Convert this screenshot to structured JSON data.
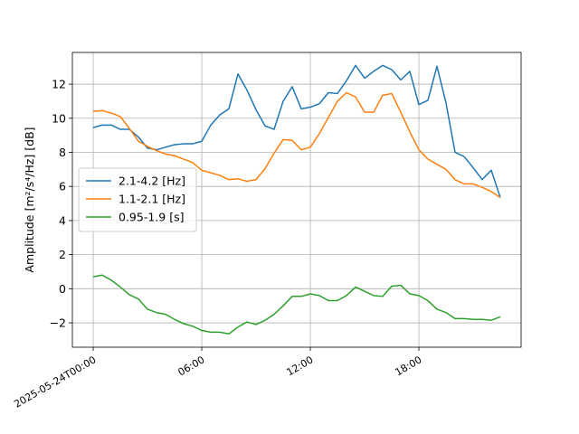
{
  "chart_data": {
    "type": "line",
    "ylabel": "Amplitude [m²/s⁴/Hz] [dB]",
    "x": [
      0,
      0.5,
      1,
      1.5,
      2,
      2.5,
      3,
      3.5,
      4,
      4.5,
      5,
      5.5,
      6,
      6.5,
      7,
      7.5,
      8,
      8.5,
      9,
      9.5,
      10,
      10.5,
      11,
      11.5,
      12,
      12.5,
      13,
      13.5,
      14,
      14.5,
      15,
      15.5,
      16,
      16.5,
      17,
      17.5,
      18,
      18.5,
      19,
      19.5,
      20,
      20.5,
      21,
      21.5,
      22,
      22.5
    ],
    "series": [
      {
        "name": "2.1-4.2 [Hz]",
        "color": "#1f77b4",
        "values": [
          9.45,
          9.6,
          9.6,
          9.35,
          9.35,
          8.9,
          8.25,
          8.15,
          8.3,
          8.45,
          8.5,
          8.5,
          8.65,
          9.6,
          10.2,
          10.55,
          12.6,
          11.65,
          10.5,
          9.55,
          9.35,
          11.0,
          11.85,
          10.55,
          10.65,
          10.85,
          11.5,
          11.45,
          12.2,
          13.1,
          12.35,
          12.75,
          13.1,
          12.85,
          12.25,
          12.75,
          10.8,
          11.05,
          13.05,
          10.9,
          8.0,
          7.75,
          7.1,
          6.4,
          6.95,
          5.35
        ]
      },
      {
        "name": "1.1-2.1 [Hz]",
        "color": "#ff7f0e",
        "values": [
          10.4,
          10.45,
          10.3,
          10.1,
          9.4,
          8.65,
          8.35,
          8.1,
          7.9,
          7.8,
          7.6,
          7.4,
          6.95,
          6.8,
          6.65,
          6.4,
          6.45,
          6.3,
          6.4,
          7.05,
          7.95,
          8.75,
          8.7,
          8.15,
          8.3,
          9.1,
          10.05,
          11.0,
          11.5,
          11.25,
          10.35,
          10.35,
          11.35,
          11.45,
          10.35,
          9.2,
          8.15,
          7.6,
          7.3,
          7.0,
          6.4,
          6.15,
          6.15,
          5.95,
          5.7,
          5.35
        ]
      },
      {
        "name": "0.95-1.9 [s]",
        "color": "#2ca02c",
        "values": [
          0.7,
          0.8,
          0.5,
          0.1,
          -0.35,
          -0.6,
          -1.2,
          -1.4,
          -1.5,
          -1.8,
          -2.05,
          -2.2,
          -2.45,
          -2.55,
          -2.55,
          -2.65,
          -2.25,
          -1.95,
          -2.1,
          -1.85,
          -1.5,
          -1.0,
          -0.45,
          -0.45,
          -0.3,
          -0.4,
          -0.7,
          -0.7,
          -0.4,
          0.1,
          -0.15,
          -0.4,
          -0.45,
          0.15,
          0.2,
          -0.3,
          -0.4,
          -0.7,
          -1.2,
          -1.4,
          -1.75,
          -1.75,
          -1.8,
          -1.8,
          -1.85,
          -1.65
        ]
      }
    ],
    "xlim": [
      -1.15,
      23.65
    ],
    "xticks": [
      {
        "value": 0,
        "label": "2025-05-24T00:00"
      },
      {
        "value": 6,
        "label": "06:00"
      },
      {
        "value": 12,
        "label": "12:00"
      },
      {
        "value": 18,
        "label": "18:00"
      }
    ],
    "ylim": [
      -3.43,
      13.86
    ],
    "yticks": [
      {
        "value": -2,
        "label": "−2"
      },
      0,
      2,
      4,
      6,
      8,
      10,
      12
    ],
    "grid": true,
    "legend": "center left"
  }
}
